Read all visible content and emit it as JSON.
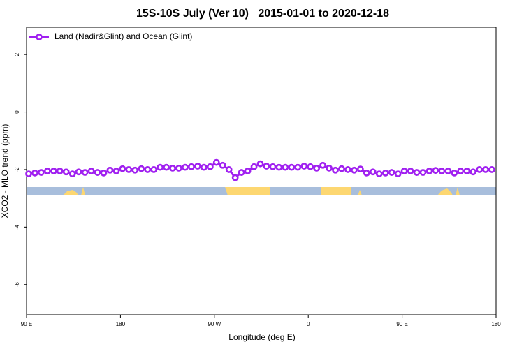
{
  "chart_data": {
    "type": "line",
    "title": "15S-10S July (Ver 10)   2015-01-01 to 2020-12-18",
    "xlabel": "Longitude (deg E)",
    "ylabel": "XCO2 - MLO trend (ppm)",
    "x": [
      92,
      98,
      104,
      110,
      116,
      122,
      128,
      134,
      140,
      146,
      152,
      158,
      164,
      170,
      176,
      182,
      188,
      194,
      200,
      206,
      212,
      218,
      224,
      230,
      236,
      242,
      248,
      254,
      260,
      266,
      272,
      278,
      284,
      290,
      296,
      302,
      308,
      314,
      320,
      326,
      332,
      338,
      344,
      350,
      356,
      362,
      368,
      374,
      380,
      386,
      392,
      398,
      404,
      410,
      416,
      422,
      428,
      434,
      440,
      446,
      452,
      458,
      464,
      470,
      476,
      482,
      488,
      494,
      500,
      506,
      512,
      518,
      524,
      530,
      536
    ],
    "series": [
      {
        "name": "Land (Nadir&Glint) and Ocean (Glint)",
        "color": "#a020f0",
        "values": [
          -2.15,
          -2.12,
          -2.1,
          -2.05,
          -2.05,
          -2.05,
          -2.08,
          -2.15,
          -2.08,
          -2.1,
          -2.05,
          -2.1,
          -2.12,
          -2.02,
          -2.05,
          -1.97,
          -2.0,
          -2.02,
          -1.97,
          -2.0,
          -2.0,
          -1.92,
          -1.92,
          -1.95,
          -1.95,
          -1.92,
          -1.9,
          -1.88,
          -1.92,
          -1.9,
          -1.75,
          -1.85,
          -2.0,
          -2.28,
          -2.1,
          -2.05,
          -1.9,
          -1.8,
          -1.88,
          -1.9,
          -1.92,
          -1.92,
          -1.92,
          -1.92,
          -1.88,
          -1.9,
          -1.95,
          -1.85,
          -1.95,
          -2.02,
          -1.97,
          -2.0,
          -2.02,
          -1.98,
          -2.12,
          -2.08,
          -2.15,
          -2.12,
          -2.1,
          -2.15,
          -2.05,
          -2.05,
          -2.1,
          -2.1,
          -2.05,
          -2.03,
          -2.05,
          -2.05,
          -2.12,
          -2.05,
          -2.05,
          -2.08,
          -2.0,
          -2.0,
          -2.0
        ]
      }
    ],
    "xlim": [
      90,
      540
    ],
    "xticks": [
      {
        "value": 90,
        "label": "90 E"
      },
      180,
      {
        "value": 270,
        "label": "90 W"
      },
      {
        "value": 360,
        "label": "0"
      },
      {
        "value": 450,
        "label": "90 E"
      },
      {
        "value": 540,
        "label": "180"
      }
    ],
    "ylim": [
      -7.05,
      2.95
    ],
    "yticks": [
      2,
      0,
      -2,
      -4,
      -6
    ],
    "legend": "top-left"
  }
}
